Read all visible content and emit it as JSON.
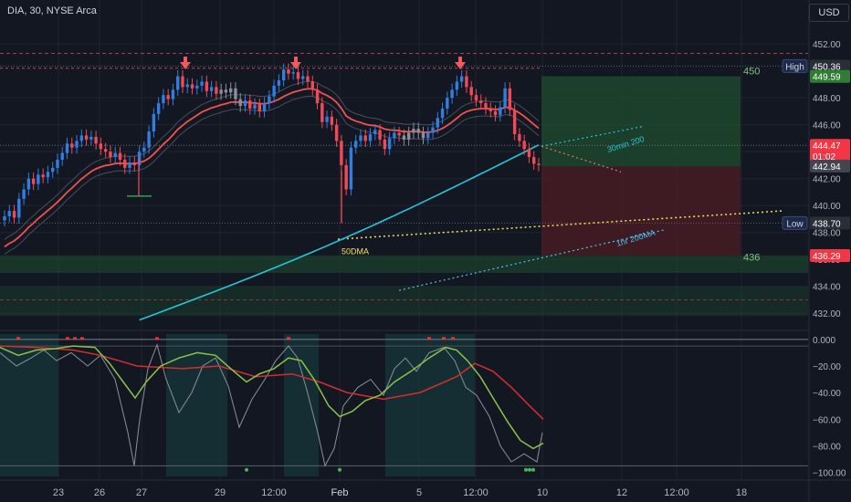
{
  "header": {
    "title": "DIA, 30, NYSE Arca",
    "currency": "USD"
  },
  "colors": {
    "background": "#131722",
    "grid": "#1f2330",
    "candle_up": "#2f7fe0",
    "candle_down": "#f04a57",
    "candle_neutral": "#8a8f9c",
    "ema": "#ef5350",
    "ma_cyan": "#26c6da",
    "yellow": "#f5e15a",
    "green_zone": "#1f4d2e",
    "red_zone": "#4a1c24",
    "osc_green": "#8bc34a",
    "osc_red": "#d32f2f"
  },
  "chart_data": [
    {
      "type": "candlestick",
      "symbol": "DIA",
      "interval": "30",
      "exchange": "NYSE Arca",
      "ylim": [
        431.0,
        453.5
      ],
      "y_ticks": [
        452.0,
        448.0,
        446.0,
        444.0,
        442.0,
        440.0,
        438.0,
        436.0,
        434.0,
        432.0
      ],
      "x_ticks": [
        "23",
        "26",
        "27",
        "29",
        "12:00",
        "Feb",
        "5",
        "12:00",
        "10",
        "12",
        "12:00",
        "18"
      ],
      "price_labels": [
        {
          "tag": "High",
          "value": "450.36",
          "color": "#2a2e39"
        },
        {
          "tag": "",
          "value": "449.59",
          "color": "#2e7d32"
        },
        {
          "tag": "",
          "value": "444.47",
          "color": "#f23645",
          "sub": "01:02"
        },
        {
          "tag": "",
          "value": "442.94",
          "color": "#434651"
        },
        {
          "tag": "Low",
          "value": "438.70",
          "color": "#2a2e39"
        },
        {
          "tag": "",
          "value": "436.29",
          "color": "#f23645"
        }
      ],
      "annotations": [
        {
          "text": "450",
          "price": 450.0
        },
        {
          "text": "436",
          "price": 436.2
        },
        {
          "text": "50DMA",
          "price": 437.2
        },
        {
          "text": "30min 200",
          "price": 445.7
        },
        {
          "text": "1hr 200MA",
          "price": 437.9
        }
      ],
      "markers": {
        "down_arrows": 3
      },
      "grid": true,
      "closes": [
        439.2,
        439.6,
        439.1,
        440.5,
        441.2,
        442.0,
        441.6,
        442.3,
        442.1,
        442.5,
        442.8,
        443.4,
        443.9,
        444.6,
        444.3,
        444.8,
        445.2,
        444.9,
        445.1,
        444.6,
        444.2,
        444.0,
        443.6,
        443.9,
        443.4,
        442.8,
        443.2,
        443.0,
        444.0,
        444.3,
        445.5,
        446.8,
        447.6,
        448.2,
        447.9,
        448.6,
        449.6,
        448.8,
        449.0,
        448.7,
        448.9,
        449.2,
        448.5,
        448.8,
        448.3,
        448.6,
        448.4,
        448.7,
        447.9,
        447.4,
        447.8,
        447.2,
        447.5,
        447.0,
        447.6,
        448.1,
        448.9,
        449.3,
        450.1,
        449.8,
        449.9,
        449.4,
        449.6,
        449.2,
        448.6,
        447.6,
        446.2,
        446.6,
        446.0,
        444.8,
        443.0,
        441.2,
        444.3,
        444.8,
        445.2,
        444.8,
        445.3,
        445.6,
        444.9,
        444.2,
        445.0,
        445.4,
        445.2,
        444.9,
        445.4,
        445.7,
        445.4,
        445.0,
        445.4,
        445.8,
        446.5,
        447.2,
        448.0,
        448.6,
        449.2,
        449.6,
        448.8,
        448.2,
        447.8,
        447.6,
        447.2,
        447.0,
        446.7,
        447.3,
        448.7,
        447.1,
        445.3,
        444.8,
        444.2,
        443.6,
        443.1,
        443.0
      ]
    },
    {
      "type": "line",
      "name": "oscillator",
      "ylim": [
        -103.0,
        4.0
      ],
      "y_ticks": [
        0.0,
        -20.0,
        -40.0,
        -60.0,
        -80.0,
        -100.0
      ],
      "y_tick_labels": [
        "0.000",
        "−20.00",
        "−40.00",
        "−60.00",
        "−80.00",
        "−100.00"
      ]
    }
  ]
}
